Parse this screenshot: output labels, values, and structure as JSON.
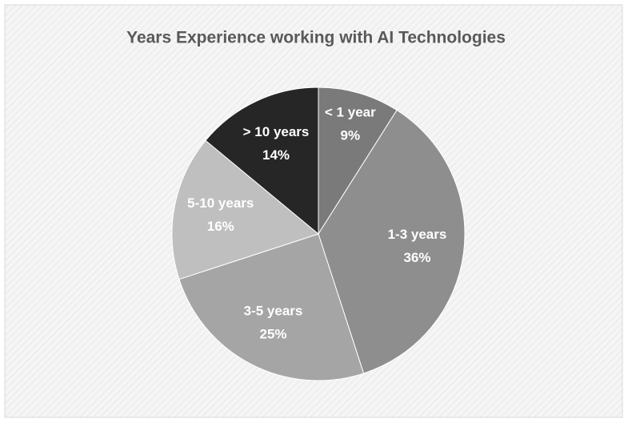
{
  "chart_data": {
    "type": "pie",
    "title": "Years Experience working with AI Technologies",
    "categories": [
      "< 1 year",
      "1-3 years",
      "3-5 years",
      "5-10 years",
      "> 10 years"
    ],
    "values": [
      9,
      36,
      25,
      16,
      14
    ],
    "value_labels": [
      "9%",
      "36%",
      "25%",
      "16%",
      "14%"
    ],
    "colors": [
      "#7a7a7a",
      "#8e8e8e",
      "#a5a5a5",
      "#bfbfbf",
      "#262626"
    ]
  }
}
